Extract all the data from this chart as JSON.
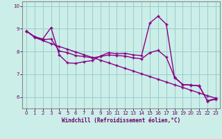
{
  "xlabel": "Windchill (Refroidissement éolien,°C)",
  "bg_color": "#cceee8",
  "line_color": "#880088",
  "grid_color": "#99cccc",
  "axis_color": "#660066",
  "spine_color": "#888888",
  "xlim": [
    -0.5,
    23.5
  ],
  "ylim": [
    5.5,
    10.2
  ],
  "yticks": [
    6,
    7,
    8,
    9,
    10
  ],
  "xticks": [
    0,
    1,
    2,
    3,
    4,
    5,
    6,
    7,
    8,
    9,
    10,
    11,
    12,
    13,
    14,
    15,
    16,
    17,
    18,
    19,
    20,
    21,
    22,
    23
  ],
  "line1_x": [
    0,
    1,
    2,
    3,
    4,
    5,
    6,
    7,
    8,
    9,
    10,
    11,
    12,
    13,
    14,
    15,
    16,
    17,
    18,
    19,
    20,
    21,
    22,
    23
  ],
  "line1_y": [
    8.9,
    8.65,
    8.55,
    9.05,
    7.85,
    7.5,
    7.48,
    7.55,
    7.6,
    7.8,
    7.95,
    7.9,
    7.92,
    7.85,
    7.82,
    9.25,
    9.55,
    9.2,
    6.85,
    6.55,
    6.52,
    6.5,
    5.82,
    5.9
  ],
  "line2_x": [
    0,
    1,
    2,
    3,
    4,
    5,
    6,
    7,
    8,
    9,
    10,
    11,
    12,
    13,
    14,
    15,
    16,
    17,
    18,
    19,
    20,
    21,
    22,
    23
  ],
  "line2_y": [
    8.9,
    8.62,
    8.48,
    8.35,
    8.22,
    8.1,
    7.98,
    7.86,
    7.74,
    7.62,
    7.5,
    7.38,
    7.26,
    7.14,
    7.02,
    6.9,
    6.78,
    6.66,
    6.54,
    6.42,
    6.3,
    6.18,
    6.06,
    5.95
  ],
  "line3_x": [
    0,
    1,
    2,
    3,
    4,
    5,
    6,
    7,
    8,
    9,
    10,
    11,
    12,
    13,
    14,
    15,
    16,
    17,
    18,
    19,
    20,
    21,
    22,
    23
  ],
  "line3_y": [
    8.9,
    8.65,
    8.52,
    8.55,
    8.02,
    7.95,
    7.82,
    7.78,
    7.72,
    7.78,
    7.85,
    7.82,
    7.8,
    7.72,
    7.68,
    7.95,
    8.05,
    7.75,
    6.88,
    6.55,
    6.53,
    6.48,
    5.84,
    5.93
  ]
}
